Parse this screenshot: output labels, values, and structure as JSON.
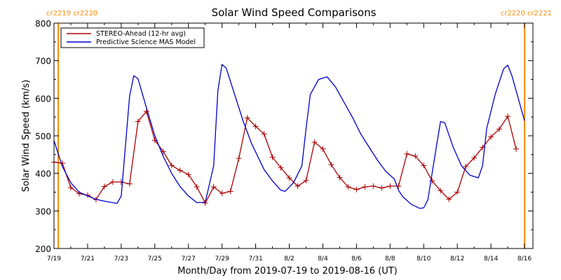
{
  "chart_data": {
    "type": "line",
    "title": "Solar Wind Speed Comparisons",
    "xlabel": "Month/Day from 2019-07-19 to 2019-08-16 (UT)",
    "ylabel": "Solar Wind Speed (km/s)",
    "xlim": [
      "2019-07-19",
      "2019-08-16T12:00"
    ],
    "ylim": [
      200,
      800
    ],
    "x_ticks": [
      {
        "date": "2019-07-19",
        "label": "7/19"
      },
      {
        "date": "2019-07-21",
        "label": "7/21"
      },
      {
        "date": "2019-07-23",
        "label": "7/23"
      },
      {
        "date": "2019-07-25",
        "label": "7/25"
      },
      {
        "date": "2019-07-27",
        "label": "7/27"
      },
      {
        "date": "2019-07-29",
        "label": "7/29"
      },
      {
        "date": "2019-07-31",
        "label": "7/31"
      },
      {
        "date": "2019-08-02",
        "label": "8/2"
      },
      {
        "date": "2019-08-04",
        "label": "8/4"
      },
      {
        "date": "2019-08-06",
        "label": "8/6"
      },
      {
        "date": "2019-08-08",
        "label": "8/8"
      },
      {
        "date": "2019-08-10",
        "label": "8/10"
      },
      {
        "date": "2019-08-12",
        "label": "8/12"
      },
      {
        "date": "2019-08-14",
        "label": "8/14"
      },
      {
        "date": "2019-08-16",
        "label": "8/16"
      }
    ],
    "y_ticks": [
      200,
      300,
      400,
      500,
      600,
      700,
      800
    ],
    "legend_position": "top-left",
    "series": [
      {
        "name": "STEREO-Ahead (12-hr avg)",
        "color": "#aa0000",
        "marker": "plus",
        "points": [
          [
            "2019-07-19T00:00",
            430
          ],
          [
            "2019-07-19T12:00",
            427
          ],
          [
            "2019-07-20T00:00",
            362
          ],
          [
            "2019-07-20T12:00",
            346
          ],
          [
            "2019-07-21T00:00",
            342
          ],
          [
            "2019-07-21T12:00",
            330
          ],
          [
            "2019-07-22T00:00",
            365
          ],
          [
            "2019-07-22T12:00",
            377
          ],
          [
            "2019-07-23T00:00",
            377
          ],
          [
            "2019-07-23T12:00",
            372
          ],
          [
            "2019-07-24T00:00",
            538
          ],
          [
            "2019-07-24T12:00",
            565
          ],
          [
            "2019-07-25T00:00",
            488
          ],
          [
            "2019-07-25T12:00",
            458
          ],
          [
            "2019-07-26T00:00",
            421
          ],
          [
            "2019-07-26T12:00",
            408
          ],
          [
            "2019-07-27T00:00",
            397
          ],
          [
            "2019-07-27T12:00",
            364
          ],
          [
            "2019-07-28T00:00",
            321
          ],
          [
            "2019-07-28T12:00",
            364
          ],
          [
            "2019-07-29T00:00",
            347
          ],
          [
            "2019-07-29T12:00",
            352
          ],
          [
            "2019-07-30T00:00",
            440
          ],
          [
            "2019-07-30T12:00",
            548
          ],
          [
            "2019-07-31T00:00",
            525
          ],
          [
            "2019-07-31T12:00",
            505
          ],
          [
            "2019-08-01T00:00",
            443
          ],
          [
            "2019-08-01T12:00",
            415
          ],
          [
            "2019-08-02T00:00",
            388
          ],
          [
            "2019-08-02T12:00",
            366
          ],
          [
            "2019-08-03T00:00",
            381
          ],
          [
            "2019-08-03T12:00",
            483
          ],
          [
            "2019-08-04T00:00",
            465
          ],
          [
            "2019-08-04T12:00",
            423
          ],
          [
            "2019-08-05T00:00",
            389
          ],
          [
            "2019-08-05T12:00",
            364
          ],
          [
            "2019-08-06T00:00",
            357
          ],
          [
            "2019-08-06T12:00",
            364
          ],
          [
            "2019-08-07T00:00",
            366
          ],
          [
            "2019-08-07T12:00",
            361
          ],
          [
            "2019-08-08T00:00",
            366
          ],
          [
            "2019-08-08T12:00",
            366
          ],
          [
            "2019-08-09T00:00",
            452
          ],
          [
            "2019-08-09T12:00",
            446
          ],
          [
            "2019-08-10T00:00",
            421
          ],
          [
            "2019-08-10T12:00",
            380
          ],
          [
            "2019-08-11T00:00",
            354
          ],
          [
            "2019-08-11T12:00",
            331
          ],
          [
            "2019-08-12T00:00",
            350
          ],
          [
            "2019-08-12T12:00",
            418
          ],
          [
            "2019-08-13T00:00",
            441
          ],
          [
            "2019-08-13T12:00",
            469
          ],
          [
            "2019-08-14T00:00",
            497
          ],
          [
            "2019-08-14T12:00",
            518
          ],
          [
            "2019-08-15T00:00",
            552
          ],
          [
            "2019-08-15T12:00",
            465
          ]
        ]
      },
      {
        "name": "Predictive Science MAS Model",
        "color": "#0000cc",
        "marker": "none",
        "points": [
          [
            "2019-07-19T00:00",
            487
          ],
          [
            "2019-07-19T12:00",
            418
          ],
          [
            "2019-07-20T00:00",
            375
          ],
          [
            "2019-07-20T12:00",
            350
          ],
          [
            "2019-07-21T00:00",
            340
          ],
          [
            "2019-07-21T12:00",
            331
          ],
          [
            "2019-07-22T00:00",
            326
          ],
          [
            "2019-07-22T12:00",
            322
          ],
          [
            "2019-07-22T18:00",
            320
          ],
          [
            "2019-07-23T00:00",
            340
          ],
          [
            "2019-07-23T12:00",
            605
          ],
          [
            "2019-07-23T18:00",
            660
          ],
          [
            "2019-07-24T00:00",
            652
          ],
          [
            "2019-07-24T12:00",
            575
          ],
          [
            "2019-07-25T00:00",
            500
          ],
          [
            "2019-07-25T12:00",
            445
          ],
          [
            "2019-07-26T00:00",
            400
          ],
          [
            "2019-07-26T12:00",
            365
          ],
          [
            "2019-07-27T00:00",
            340
          ],
          [
            "2019-07-27T12:00",
            322
          ],
          [
            "2019-07-28T00:00",
            323
          ],
          [
            "2019-07-28T12:00",
            420
          ],
          [
            "2019-07-28T18:00",
            620
          ],
          [
            "2019-07-29T00:00",
            690
          ],
          [
            "2019-07-29T06:00",
            680
          ],
          [
            "2019-07-29T18:00",
            610
          ],
          [
            "2019-07-30T06:00",
            540
          ],
          [
            "2019-07-30T18:00",
            480
          ],
          [
            "2019-07-31T12:00",
            410
          ],
          [
            "2019-08-01T00:00",
            380
          ],
          [
            "2019-08-01T12:00",
            355
          ],
          [
            "2019-08-01T18:00",
            352
          ],
          [
            "2019-08-02T06:00",
            375
          ],
          [
            "2019-08-02T18:00",
            420
          ],
          [
            "2019-08-03T00:00",
            520
          ],
          [
            "2019-08-03T06:00",
            610
          ],
          [
            "2019-08-03T18:00",
            650
          ],
          [
            "2019-08-04T06:00",
            657
          ],
          [
            "2019-08-04T18:00",
            630
          ],
          [
            "2019-08-05T06:00",
            590
          ],
          [
            "2019-08-05T18:00",
            550
          ],
          [
            "2019-08-06T06:00",
            505
          ],
          [
            "2019-08-06T18:00",
            470
          ],
          [
            "2019-08-07T06:00",
            435
          ],
          [
            "2019-08-07T18:00",
            405
          ],
          [
            "2019-08-08T06:00",
            385
          ],
          [
            "2019-08-08T12:00",
            355
          ],
          [
            "2019-08-08T18:00",
            338
          ],
          [
            "2019-08-09T06:00",
            318
          ],
          [
            "2019-08-09T18:00",
            307
          ],
          [
            "2019-08-10T00:00",
            308
          ],
          [
            "2019-08-10T06:00",
            330
          ],
          [
            "2019-08-10T18:00",
            470
          ],
          [
            "2019-08-11T00:00",
            538
          ],
          [
            "2019-08-11T06:00",
            535
          ],
          [
            "2019-08-11T18:00",
            470
          ],
          [
            "2019-08-12T06:00",
            420
          ],
          [
            "2019-08-12T18:00",
            395
          ],
          [
            "2019-08-13T06:00",
            388
          ],
          [
            "2019-08-13T12:00",
            420
          ],
          [
            "2019-08-13T18:00",
            520
          ],
          [
            "2019-08-14T06:00",
            610
          ],
          [
            "2019-08-14T18:00",
            678
          ],
          [
            "2019-08-15T00:00",
            688
          ],
          [
            "2019-08-15T06:00",
            660
          ],
          [
            "2019-08-15T18:00",
            580
          ],
          [
            "2019-08-16T00:00",
            540
          ]
        ]
      }
    ],
    "carrington_markers": [
      {
        "date": "2019-07-19T06:00",
        "label": "cr2219 cr2220",
        "label_side": "left",
        "color": "#ff8c00"
      },
      {
        "date": "2019-08-16T00:00",
        "label": "cr2220 cr2221",
        "label_side": "right",
        "color": "#ff8c00"
      }
    ]
  }
}
